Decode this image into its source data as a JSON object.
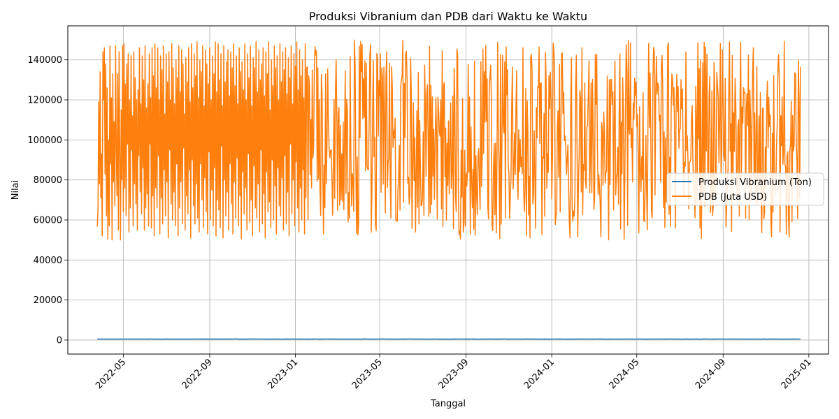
{
  "chart_data": {
    "type": "line",
    "title": "Produksi Vibranium dan PDB dari Waktu ke Waktu",
    "xlabel": "Tanggal",
    "ylabel": "Nilai",
    "x_range": [
      "2022-03-25",
      "2024-12-20"
    ],
    "xlim": [
      "2022-02-11",
      "2025-01-29"
    ],
    "ylim": [
      -7000,
      157000
    ],
    "x_ticks": [
      "2022-05",
      "2022-09",
      "2023-01",
      "2023-05",
      "2023-09",
      "2024-01",
      "2024-05",
      "2024-09",
      "2025-01"
    ],
    "y_ticks": [
      0,
      20000,
      40000,
      60000,
      80000,
      100000,
      120000,
      140000
    ],
    "grid": true,
    "legend_position": "center-right",
    "series": [
      {
        "name": "Produksi Vibranium (Ton)",
        "color": "#1f77b4",
        "values": [
          500,
          450,
          520,
          480,
          510,
          470,
          530,
          490,
          460,
          500,
          520,
          480,
          505,
          495,
          515,
          470,
          485,
          525,
          455,
          500,
          490,
          510,
          480,
          520,
          470,
          500,
          495,
          505,
          485,
          515
        ],
        "range": [
          450,
          550
        ]
      },
      {
        "name": "PDB (Juta USD)",
        "color": "#ff7f0e",
        "range": [
          50000,
          150000
        ],
        "values": [
          56700,
          66000,
          119000,
          78000,
          134000,
          71000,
          93000,
          52000,
          144000,
          120000,
          146000,
          83000,
          138000,
          62000,
          126000,
          50500,
          100000,
          57000,
          147000,
          88000,
          121000,
          50000,
          133000,
          79000,
          109000,
          67000,
          147000,
          96000,
          72000,
          133000,
          55000,
          144000,
          94000,
          50000,
          115000,
          80000,
          147000,
          64000,
          148000,
          76000,
          128000,
          62000,
          138000,
          98000,
          143000,
          54000,
          120000,
          66000,
          142000,
          95000,
          112000,
          57000,
          144000,
          78000,
          131000,
          68000,
          120000,
          55000,
          125000,
          92000,
          146000,
          74000,
          118000,
          63000,
          142000,
          86000,
          130000,
          55000,
          147000,
          66000,
          116000,
          73000,
          128000,
          57000,
          143000,
          98000,
          121000,
          56000,
          146000,
          72000,
          132000,
          52000,
          148000,
          76000,
          126000,
          66000,
          146000,
          92000,
          120000,
          53000,
          142000,
          71000,
          135000,
          58000,
          147000,
          85000,
          113000,
          62000,
          143000,
          79000,
          129000,
          51000,
          144000,
          95000,
          120000,
          68000,
          148000,
          60000,
          136000,
          74000,
          118000,
          57000,
          140000,
          88000,
          131000,
          52000,
          147000,
          66000,
          124000,
          79000,
          145000,
          58000,
          138000,
          96000,
          113000,
          55000,
          141000,
          72000,
          129000,
          63000,
          146000,
          85000,
          119000,
          51000,
          148000,
          90000,
          126000,
          67000,
          143000,
          58000,
          132000,
          78000,
          149000,
          61000,
          121000,
          54000,
          140000,
          88000,
          134000,
          70000,
          147000,
          56000,
          117000,
          81000,
          145000,
          64000,
          138000,
          53000,
          128000,
          94000,
          146000,
          60000,
          120000,
          75000,
          142000,
          57000,
          133000,
          86000,
          149000,
          52000,
          124000,
          70000,
          148000,
          65000,
          130000,
          56000,
          143000,
          97000,
          117000,
          51000,
          147000,
          80000,
          129000,
          62000,
          139000,
          74000,
          145000,
          55000,
          122000,
          88000,
          144000,
          68000,
          136000,
          53000,
          148000,
          79000,
          127000,
          61000,
          142000,
          91000,
          118000,
          57000,
          146000,
          72000,
          134000,
          50500,
          139000,
          84000,
          125000,
          63000,
          148000,
          76000,
          120000,
          55000,
          143000,
          93000,
          131000,
          59000,
          147000,
          70000,
          117000,
          52000,
          141000,
          87000,
          136000,
          66000,
          149000,
          61000,
          124000,
          78000,
          145000,
          54000,
          130000,
          95000,
          138000,
          58000,
          146000,
          73000,
          122000,
          51000,
          144000,
          84000,
          133000,
          64000,
          149000,
          69000,
          115000,
          56000,
          140000,
          90000,
          127000,
          60000,
          147000,
          77000,
          136000,
          53000,
          142000,
          86000,
          120000,
          67000,
          148000,
          62000,
          129000,
          81000,
          144000,
          55000,
          135000,
          92000,
          146000,
          58000,
          123000,
          74000,
          141000,
          52000,
          131000,
          98000,
          147000,
          63000,
          118000,
          80000,
          143000,
          57000,
          137000,
          89000,
          149000,
          66000,
          125000,
          54000,
          145000,
          76000,
          132000,
          60000,
          140000,
          85000,
          121000,
          53000,
          148000,
          71000,
          136000,
          136500
        ]
      }
    ]
  }
}
